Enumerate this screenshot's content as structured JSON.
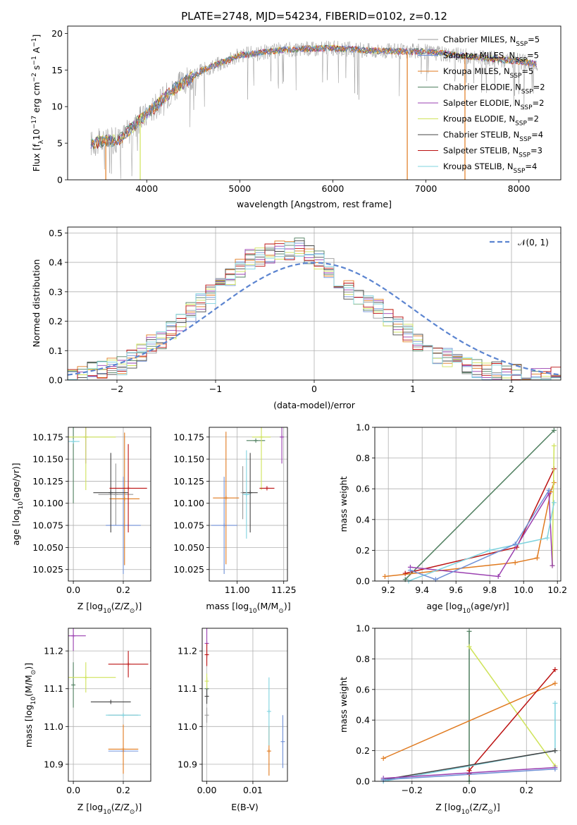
{
  "colors": {
    "Chabrier MILES": "#999999",
    "Salpeter MILES": "#6f8fd6",
    "Kroupa MILES": "#e07a1f",
    "Chabrier ELODIE": "#4f7f5f",
    "Salpeter ELODIE": "#9a3fb0",
    "Kroupa ELODIE": "#cfe35a",
    "Chabrier STELIB": "#444444",
    "Salpeter STELIB": "#bb1111",
    "Kroupa STELIB": "#7fd3df"
  },
  "chart_data": [
    {
      "id": "spectrum",
      "type": "line",
      "title": "PLATE=2748, MJD=54234, FIBERID=0102, z=0.12",
      "xlabel": "wavelength [Angstrom, rest frame]",
      "ylabel": "Flux [f_λ10^-17 erg cm^-2 s^-1 A^-1]",
      "xlim": [
        3150,
        8450
      ],
      "ylim": [
        0,
        21
      ],
      "xticks": [
        4000,
        5000,
        6000,
        7000,
        8000
      ],
      "yticks": [
        0,
        5,
        10,
        15,
        20
      ],
      "x_range": [
        3400,
        8200
      ],
      "flux_profile": {
        "x": [
          3400,
          3700,
          4000,
          4300,
          4600,
          5000,
          5500,
          6000,
          6500,
          7000,
          7500,
          8000,
          8200
        ],
        "y": [
          5.0,
          5.5,
          9.0,
          12.5,
          15.0,
          17.0,
          17.8,
          18.0,
          17.6,
          17.5,
          16.8,
          16.2,
          15.8
        ]
      },
      "legend": [
        {
          "label": "Chabrier MILES",
          "nssp": "5"
        },
        {
          "label": "Salpeter MILES",
          "nssp": "5"
        },
        {
          "label": "Kroupa MILES",
          "nssp": "5"
        },
        {
          "label": "Chabrier ELODIE",
          "nssp": "2"
        },
        {
          "label": "Salpeter ELODIE",
          "nssp": "2"
        },
        {
          "label": "Kroupa ELODIE",
          "nssp": "2"
        },
        {
          "label": "Chabrier STELIB",
          "nssp": "4"
        },
        {
          "label": "Salpeter STELIB",
          "nssp": "3"
        },
        {
          "label": "Kroupa STELIB",
          "nssp": "4"
        }
      ],
      "legend_placement": "right",
      "grid": false
    },
    {
      "id": "residuals",
      "type": "step",
      "xlabel": "(data-model)/error",
      "ylabel": "Normed distribution",
      "xlim": [
        -2.5,
        2.5
      ],
      "ylim": [
        0,
        0.52
      ],
      "xticks": [
        -2,
        -1,
        0,
        1,
        2
      ],
      "yticks": [
        0.0,
        0.1,
        0.2,
        0.3,
        0.4,
        0.5
      ],
      "bin_width": 0.1,
      "reference_curve": "N(0,1)",
      "legend": [
        "𝒩(0, 1)"
      ],
      "legend_placement": "top-right",
      "grid": true,
      "median_histogram": [
        0.01,
        0.02,
        0.03,
        0.04,
        0.04,
        0.05,
        0.07,
        0.09,
        0.12,
        0.14,
        0.17,
        0.2,
        0.23,
        0.26,
        0.29,
        0.32,
        0.35,
        0.38,
        0.41,
        0.42,
        0.43,
        0.44,
        0.44,
        0.45,
        0.43,
        0.41,
        0.38,
        0.34,
        0.31,
        0.28,
        0.26,
        0.24,
        0.21,
        0.18,
        0.16,
        0.13,
        0.11,
        0.09,
        0.08,
        0.06,
        0.05,
        0.04,
        0.03,
        0.03,
        0.02,
        0.02,
        0.01,
        0.01,
        0.01,
        0.01
      ]
    },
    {
      "id": "age_vs_Z",
      "type": "errorbar",
      "xlabel": "Z [log10(Z/Z☉)]",
      "ylabel": "age  [log10(age/yr)]",
      "xlim": [
        -0.02,
        0.31
      ],
      "ylim": [
        10.012,
        10.186
      ],
      "xticks": [
        0.0,
        0.2
      ],
      "yticks": [
        10.025,
        10.05,
        10.075,
        10.1,
        10.125,
        10.15,
        10.175
      ],
      "grid": true,
      "points": [
        {
          "model": "Chabrier MILES",
          "x": 0.17,
          "xerr": 0.07,
          "y": 10.11,
          "yerr": 0.035
        },
        {
          "model": "Salpeter MILES",
          "x": 0.2,
          "xerr": 0.07,
          "y": 10.075,
          "yerr": 0.055
        },
        {
          "model": "Kroupa MILES",
          "x": 0.205,
          "xerr": 0.06,
          "y": 10.105,
          "yerr": 0.075
        },
        {
          "model": "Chabrier ELODIE",
          "x": 0.0,
          "xerr": 0.0,
          "y": 10.17,
          "yerr": 0.07
        },
        {
          "model": "Salpeter ELODIE",
          "x": 0.05,
          "xerr": 0.0,
          "y": 10.175,
          "yerr": 0.03
        },
        {
          "model": "Kroupa ELODIE",
          "x": 0.05,
          "xerr": 0.12,
          "y": 10.175,
          "yerr": 0.06
        },
        {
          "model": "Chabrier STELIB",
          "x": 0.15,
          "xerr": 0.07,
          "y": 10.112,
          "yerr": 0.045
        },
        {
          "model": "Salpeter STELIB",
          "x": 0.22,
          "xerr": 0.075,
          "y": 10.117,
          "yerr": 0.05
        },
        {
          "model": "Kroupa STELIB",
          "x": 0.0,
          "xerr": 0.025,
          "y": 10.17,
          "yerr": 0.0
        }
      ]
    },
    {
      "id": "age_vs_mass",
      "type": "errorbar",
      "xlabel": "mass [log10(M/M☉)]",
      "ylabel": "",
      "xlim": [
        10.85,
        11.27
      ],
      "ylim": [
        10.012,
        10.186
      ],
      "xticks": [
        11.0,
        11.25
      ],
      "yticks": [
        10.025,
        10.05,
        10.075,
        10.1,
        10.125,
        10.15,
        10.175
      ],
      "grid": true,
      "points": [
        {
          "model": "Chabrier MILES",
          "x": 11.03,
          "xerr": 0.0,
          "y": 10.112,
          "yerr": 0.03
        },
        {
          "model": "Salpeter MILES",
          "x": 10.93,
          "xerr": 0.07,
          "y": 10.075,
          "yerr": 0.055
        },
        {
          "model": "Kroupa MILES",
          "x": 10.94,
          "xerr": 0.07,
          "y": 10.106,
          "yerr": 0.075
        },
        {
          "model": "Chabrier ELODIE",
          "x": 11.1,
          "xerr": 0.05,
          "y": 10.171,
          "yerr": 0.0
        },
        {
          "model": "Salpeter ELODIE",
          "x": 11.24,
          "xerr": 0.0,
          "y": 10.175,
          "yerr": 0.03
        },
        {
          "model": "Kroupa ELODIE",
          "x": 11.13,
          "xerr": 0.05,
          "y": 10.175,
          "yerr": 0.06
        },
        {
          "model": "Chabrier STELIB",
          "x": 11.07,
          "xerr": 0.04,
          "y": 10.112,
          "yerr": 0.045
        },
        {
          "model": "Salpeter STELIB",
          "x": 11.16,
          "xerr": 0.04,
          "y": 10.117,
          "yerr": 0.0
        },
        {
          "model": "Kroupa STELIB",
          "x": 11.05,
          "xerr": 0.02,
          "y": 10.11,
          "yerr": 0.05
        }
      ]
    },
    {
      "id": "weight_vs_age",
      "type": "line",
      "xlabel": "age  [log10(age/yr)]",
      "ylabel": "mass weight",
      "xlim": [
        9.12,
        10.22
      ],
      "ylim": [
        0,
        1.0
      ],
      "xticks": [
        9.2,
        9.4,
        9.6,
        9.8,
        10.0,
        10.2
      ],
      "yticks": [
        0.0,
        0.2,
        0.4,
        0.6,
        0.8,
        1.0
      ],
      "grid": true,
      "series": [
        {
          "model": "Chabrier ELODIE",
          "x": [
            9.3,
            10.18
          ],
          "y": [
            0.01,
            0.98
          ]
        },
        {
          "model": "Salpeter STELIB",
          "x": [
            9.3,
            9.96,
            10.18
          ],
          "y": [
            0.05,
            0.22,
            0.73
          ]
        },
        {
          "model": "Kroupa MILES",
          "x": [
            9.18,
            9.95,
            10.08,
            10.16,
            10.18
          ],
          "y": [
            0.03,
            0.12,
            0.15,
            0.58,
            0.64
          ]
        },
        {
          "model": "Kroupa ELODIE",
          "x": [
            10.17,
            10.18
          ],
          "y": [
            0.1,
            0.88
          ]
        },
        {
          "model": "Salpeter ELODIE",
          "x": [
            9.33,
            9.85,
            10.15,
            10.17
          ],
          "y": [
            0.09,
            0.03,
            0.57,
            0.1
          ]
        },
        {
          "model": "Kroupa STELIB",
          "x": [
            9.32,
            9.8,
            10.14,
            10.18
          ],
          "y": [
            0.0,
            0.2,
            0.28,
            0.51
          ]
        },
        {
          "model": "Salpeter MILES",
          "x": [
            9.33,
            9.48,
            9.95,
            10.15
          ],
          "y": [
            0.07,
            0.01,
            0.24,
            0.59
          ]
        }
      ]
    },
    {
      "id": "mass_vs_Z",
      "type": "errorbar",
      "xlabel": "Z [log10(Z/Z☉)]",
      "ylabel": "mass [log10(M/M☉)]",
      "xlim": [
        -0.02,
        0.31
      ],
      "ylim": [
        10.855,
        11.26
      ],
      "xticks": [
        0.0,
        0.2
      ],
      "yticks": [
        10.9,
        11.0,
        11.1,
        11.2
      ],
      "grid": true,
      "points": [
        {
          "model": "Chabrier MILES",
          "x": 0.2,
          "xerr": 0.06,
          "y": 11.03,
          "yerr": 0.0
        },
        {
          "model": "Salpeter MILES",
          "x": 0.2,
          "xerr": 0.06,
          "y": 10.935,
          "yerr": 0.0
        },
        {
          "model": "Kroupa MILES",
          "x": 0.2,
          "xerr": 0.06,
          "y": 10.94,
          "yerr": 0.065
        },
        {
          "model": "Chabrier ELODIE",
          "x": 0.0,
          "xerr": 0.0,
          "y": 11.11,
          "yerr": 0.06
        },
        {
          "model": "Salpeter ELODIE",
          "x": 0.0,
          "xerr": 0.05,
          "y": 11.24,
          "yerr": 0.04
        },
        {
          "model": "Kroupa ELODIE",
          "x": 0.05,
          "xerr": 0.12,
          "y": 11.13,
          "yerr": 0.04
        },
        {
          "model": "Chabrier STELIB",
          "x": 0.15,
          "xerr": 0.08,
          "y": 11.065,
          "yerr": 0.0
        },
        {
          "model": "Salpeter STELIB",
          "x": 0.22,
          "xerr": 0.08,
          "y": 11.165,
          "yerr": 0.035
        },
        {
          "model": "Kroupa STELIB",
          "x": 0.2,
          "xerr": 0.07,
          "y": 11.03,
          "yerr": 0.0
        }
      ]
    },
    {
      "id": "mass_vs_ebv",
      "type": "errorbar",
      "xlabel": "E(B-V)",
      "ylabel": "",
      "xlim": [
        -0.001,
        0.0175
      ],
      "ylim": [
        10.855,
        11.26
      ],
      "xticks": [
        0.0,
        0.01
      ],
      "xtick_labels": [
        "0.00",
        "0.01"
      ],
      "yticks": [
        10.9,
        11.0,
        11.1,
        11.2
      ],
      "grid": true,
      "points": [
        {
          "model": "Chabrier MILES",
          "x": 0.0,
          "y": 11.03,
          "yerr": 0.02
        },
        {
          "model": "Salpeter MILES",
          "x": 0.0165,
          "y": 10.96,
          "yerr": 0.07
        },
        {
          "model": "Kroupa MILES",
          "x": 0.0135,
          "y": 10.935,
          "yerr": 0.065
        },
        {
          "model": "Chabrier ELODIE",
          "x": 0.0,
          "y": 11.1,
          "yerr": 0.03
        },
        {
          "model": "Salpeter ELODIE",
          "x": 0.0,
          "y": 11.22,
          "yerr": 0.04
        },
        {
          "model": "Kroupa ELODIE",
          "x": 0.0,
          "y": 11.12,
          "yerr": 0.02
        },
        {
          "model": "Chabrier STELIB",
          "x": 0.0,
          "y": 11.08,
          "yerr": 0.02
        },
        {
          "model": "Salpeter STELIB",
          "x": 0.0,
          "y": 11.19,
          "yerr": 0.03
        },
        {
          "model": "Kroupa STELIB",
          "x": 0.0135,
          "y": 11.04,
          "yerr": 0.09
        }
      ]
    },
    {
      "id": "weight_vs_Z",
      "type": "line",
      "xlabel": "Z [log10(Z/Z☉)]",
      "ylabel": "mass weight",
      "xlim": [
        -0.33,
        0.32
      ],
      "ylim": [
        0,
        1.0
      ],
      "xticks": [
        -0.2,
        0.0,
        0.2
      ],
      "yticks": [
        0.0,
        0.2,
        0.4,
        0.6,
        0.8,
        1.0
      ],
      "grid": true,
      "series": [
        {
          "model": "Chabrier ELODIE",
          "x": [
            0.0,
            0.0
          ],
          "y": [
            0.0,
            0.98
          ]
        },
        {
          "model": "Kroupa ELODIE",
          "x": [
            0.0,
            0.3
          ],
          "y": [
            0.88,
            0.1
          ]
        },
        {
          "model": "Kroupa MILES",
          "x": [
            -0.3,
            0.3
          ],
          "y": [
            0.15,
            0.64
          ]
        },
        {
          "model": "Salpeter STELIB",
          "x": [
            0.0,
            0.0,
            0.3
          ],
          "y": [
            0.05,
            0.07,
            0.73
          ]
        },
        {
          "model": "Kroupa STELIB",
          "x": [
            -0.3,
            0.3,
            0.3
          ],
          "y": [
            0.0,
            0.2,
            0.51
          ]
        },
        {
          "model": "Chabrier STELIB",
          "x": [
            -0.3,
            0.3
          ],
          "y": [
            0.01,
            0.2
          ]
        },
        {
          "model": "Salpeter ELODIE",
          "x": [
            -0.3,
            0.3
          ],
          "y": [
            0.02,
            0.09
          ]
        },
        {
          "model": "Salpeter MILES",
          "x": [
            -0.3,
            0.3
          ],
          "y": [
            0.01,
            0.08
          ]
        }
      ]
    }
  ]
}
